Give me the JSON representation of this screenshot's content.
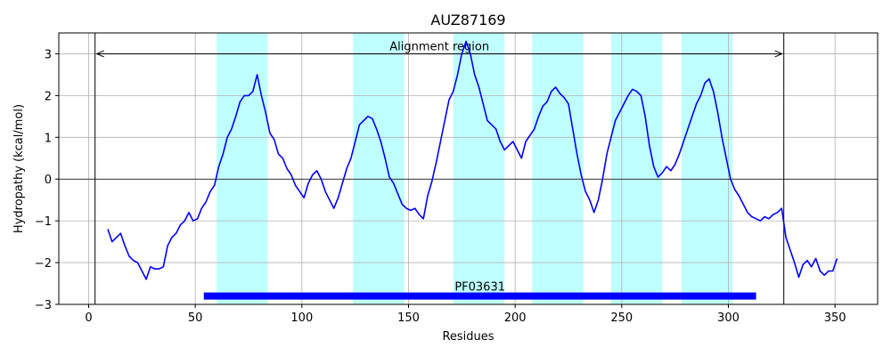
{
  "chart_data": {
    "type": "line",
    "title": "AUZ87169",
    "xlabel": "Residues",
    "ylabel": "Hydropathy (kcal/mol)",
    "xlim": [
      -14,
      370
    ],
    "ylim": [
      -3,
      3.5
    ],
    "xticks": [
      0,
      50,
      100,
      150,
      200,
      250,
      300,
      350
    ],
    "yticks": [
      -3,
      -2,
      -1,
      0,
      1,
      2,
      3
    ],
    "grid": true,
    "colors": {
      "line": "#0000ff",
      "band": "#c0ffff",
      "domain": "#0000ff",
      "frame": "#000000"
    },
    "series": [
      {
        "x": [
          9,
          11,
          13,
          15,
          17,
          19,
          21,
          23,
          25,
          27,
          29,
          31,
          33,
          35,
          37,
          39,
          41,
          43,
          45,
          47,
          49,
          51,
          53,
          55,
          57,
          59,
          61,
          63,
          65,
          67,
          69,
          71,
          73,
          75,
          77,
          79,
          81,
          83,
          85,
          87,
          89,
          91,
          93,
          95,
          97,
          99,
          101,
          103,
          105,
          107,
          109,
          111,
          113,
          115,
          117,
          119,
          121,
          123,
          125,
          127,
          129,
          131,
          133,
          135,
          137,
          139,
          141,
          143,
          145,
          147,
          149,
          151,
          153,
          155,
          157,
          159,
          161,
          163,
          165,
          167,
          169,
          171,
          173,
          175,
          177,
          179,
          181,
          183,
          185,
          187,
          189,
          191,
          193,
          195,
          197,
          199,
          201,
          203,
          205,
          207,
          209,
          211,
          213,
          215,
          217,
          219,
          221,
          223,
          225,
          227,
          229,
          231,
          233,
          235,
          237,
          239,
          241,
          243,
          245,
          247,
          249,
          251,
          253,
          255,
          257,
          259,
          261,
          263,
          265,
          267,
          269,
          271,
          273,
          275,
          277,
          279,
          281,
          283,
          285,
          287,
          289,
          291,
          293,
          295,
          297,
          299,
          301,
          303,
          305,
          307,
          309,
          311,
          313,
          315,
          317,
          319,
          321,
          323,
          325,
          327,
          329,
          331,
          333,
          335,
          337,
          339,
          341,
          343,
          345,
          347,
          349,
          351
        ],
        "values": [
          -1.2,
          -1.5,
          -1.4,
          -1.3,
          -1.6,
          -1.85,
          -1.95,
          -2.0,
          -2.2,
          -2.4,
          -2.1,
          -2.15,
          -2.15,
          -2.1,
          -1.6,
          -1.4,
          -1.3,
          -1.1,
          -1.0,
          -0.8,
          -1.0,
          -0.95,
          -0.7,
          -0.55,
          -0.3,
          -0.15,
          0.3,
          0.6,
          1.0,
          1.2,
          1.5,
          1.85,
          2.0,
          2.0,
          2.1,
          2.5,
          2.0,
          1.6,
          1.1,
          0.95,
          0.6,
          0.5,
          0.25,
          0.1,
          -0.15,
          -0.3,
          -0.45,
          -0.1,
          0.1,
          0.2,
          0.0,
          -0.3,
          -0.5,
          -0.7,
          -0.45,
          -0.1,
          0.25,
          0.5,
          0.9,
          1.3,
          1.4,
          1.5,
          1.45,
          1.2,
          0.9,
          0.5,
          0.05,
          -0.1,
          -0.35,
          -0.6,
          -0.7,
          -0.75,
          -0.7,
          -0.85,
          -0.95,
          -0.4,
          -0.05,
          0.4,
          0.9,
          1.4,
          1.9,
          2.1,
          2.5,
          3.0,
          3.3,
          3.0,
          2.5,
          2.2,
          1.8,
          1.4,
          1.3,
          1.2,
          0.9,
          0.7,
          0.8,
          0.9,
          0.7,
          0.5,
          0.9,
          1.05,
          1.2,
          1.5,
          1.75,
          1.85,
          2.1,
          2.2,
          2.05,
          1.95,
          1.8,
          1.2,
          0.6,
          0.1,
          -0.3,
          -0.5,
          -0.8,
          -0.5,
          0.0,
          0.6,
          1.0,
          1.4,
          1.6,
          1.8,
          2.0,
          2.15,
          2.1,
          2.0,
          1.5,
          0.8,
          0.3,
          0.05,
          0.15,
          0.3,
          0.2,
          0.35,
          0.6,
          0.9,
          1.2,
          1.5,
          1.8,
          2.0,
          2.3,
          2.4,
          2.1,
          1.6,
          1.0,
          0.5,
          0.0,
          -0.25,
          -0.4,
          -0.6,
          -0.8,
          -0.9,
          -0.95,
          -1.0,
          -0.9,
          -0.95,
          -0.85,
          -0.8,
          -0.7,
          -1.4,
          -1.7,
          -2.0,
          -2.35,
          -2.05,
          -1.95,
          -2.1,
          -1.9,
          -2.2,
          -2.3,
          -2.2,
          -2.2,
          -1.9
        ]
      }
    ],
    "hydrophobic_regions": [
      [
        60,
        84
      ],
      [
        124,
        148
      ],
      [
        171,
        195
      ],
      [
        208,
        232
      ],
      [
        245,
        269
      ],
      [
        278,
        302
      ]
    ],
    "alignment_region": {
      "label": "Alignment region",
      "start": 3,
      "end": 326,
      "y": 3.0
    },
    "domain_bar": {
      "label": "PF03631",
      "start": 54,
      "end": 313,
      "y": -2.8
    }
  }
}
